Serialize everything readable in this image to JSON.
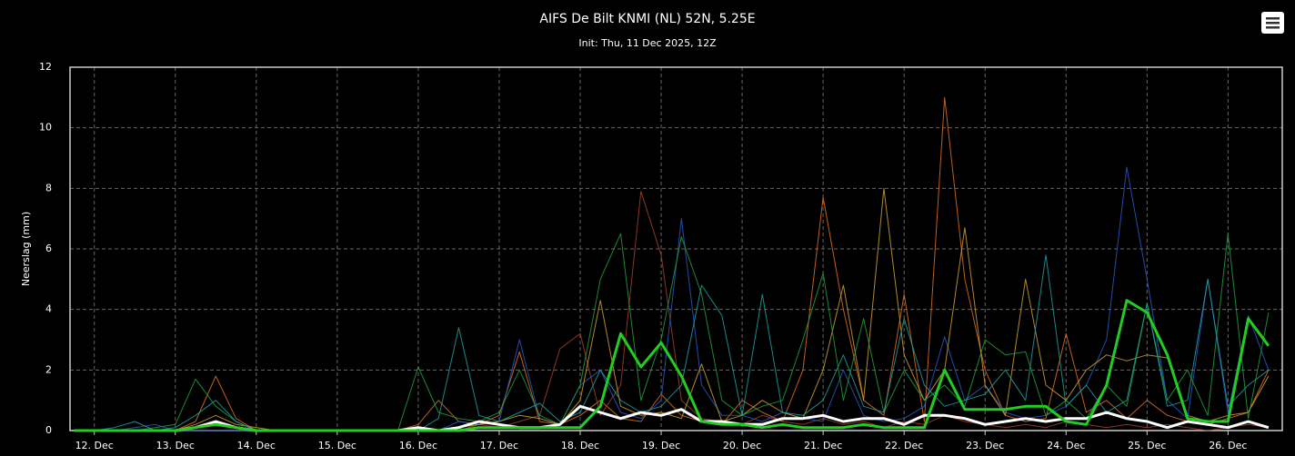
{
  "chart_data": {
    "type": "line",
    "title": "AIFS De Bilt KNMI (NL) 52N, 5.25E",
    "subtitle": "Init: Thu, 11 Dec 2025, 12Z",
    "y_label": "Neerslag (mm)",
    "xlim": [
      11.7,
      26.67
    ],
    "ylim": [
      0,
      12
    ],
    "yticks": [
      0,
      2,
      4,
      6,
      8,
      10,
      12
    ],
    "xticks": [
      {
        "value": 12,
        "label": "12. Dec"
      },
      {
        "value": 13,
        "label": "13. Dec"
      },
      {
        "value": 14,
        "label": "14. Dec"
      },
      {
        "value": 15,
        "label": "15. Dec"
      },
      {
        "value": 16,
        "label": "16. Dec"
      },
      {
        "value": 17,
        "label": "17. Dec"
      },
      {
        "value": 18,
        "label": "18. Dec"
      },
      {
        "value": 19,
        "label": "19. Dec"
      },
      {
        "value": 20,
        "label": "20. Dec"
      },
      {
        "value": 21,
        "label": "21. Dec"
      },
      {
        "value": 22,
        "label": "22. Dec"
      },
      {
        "value": 23,
        "label": "23. Dec"
      },
      {
        "value": 24,
        "label": "24. Dec"
      },
      {
        "value": 25,
        "label": "25. Dec"
      },
      {
        "value": 26,
        "label": "26. Dec"
      }
    ],
    "grid": true,
    "x": [
      11.75,
      12,
      12.25,
      12.5,
      12.75,
      13,
      13.25,
      13.5,
      13.75,
      14,
      14.25,
      14.5,
      14.75,
      15,
      15.25,
      15.5,
      15.75,
      16,
      16.25,
      16.5,
      16.75,
      17,
      17.25,
      17.5,
      17.75,
      18,
      18.25,
      18.5,
      18.75,
      19,
      19.25,
      19.5,
      19.75,
      20,
      20.25,
      20.5,
      20.75,
      21,
      21.25,
      21.5,
      21.75,
      22,
      22.25,
      22.5,
      22.75,
      23,
      23.25,
      23.5,
      23.75,
      24,
      24.25,
      24.5,
      24.75,
      25,
      25.25,
      25.5,
      25.75,
      26,
      26.25,
      26.5
    ],
    "series": [
      {
        "color": "#e07020",
        "width": 1,
        "values": [
          0,
          0,
          0,
          0,
          0,
          0,
          0.3,
          1.8,
          0.4,
          0,
          0,
          0,
          0,
          0,
          0,
          0,
          0,
          0.2,
          1.0,
          0.3,
          0.2,
          0.5,
          2.6,
          0.3,
          0.2,
          0.5,
          1.0,
          0.4,
          0.3,
          1.2,
          0.5,
          0.3,
          0.2,
          1.0,
          0.6,
          0.3,
          2.0,
          7.7,
          4.0,
          1.0,
          0.5,
          4.5,
          0.3,
          11.0,
          5.0,
          2.0,
          0.5,
          0.3,
          0.4,
          3.2,
          0.6,
          1.0,
          0.4,
          1.0,
          0.5,
          0.3,
          0.2,
          0.4,
          0.6,
          2.0
        ]
      },
      {
        "color": "#a0422a",
        "width": 1,
        "values": [
          0,
          0,
          0,
          0,
          0,
          0,
          0,
          0,
          0,
          0,
          0,
          0,
          0,
          0,
          0,
          0,
          0,
          0,
          0,
          0,
          0.2,
          0.1,
          0.3,
          0.5,
          2.7,
          3.2,
          0.5,
          1.5,
          7.9,
          5.8,
          1.0,
          0.4,
          0.3,
          0.2,
          0.5,
          0.3,
          0.2,
          0.4,
          0.2,
          0.3,
          0.1,
          0.3,
          0.2,
          0.5,
          0.3,
          0.2,
          0.1,
          0.2,
          0.1,
          0.3,
          0.2,
          0.1,
          0.2,
          0.1,
          0.2,
          0.1,
          0,
          0.1,
          0.2,
          0.1
        ]
      },
      {
        "color": "#2858c8",
        "width": 1,
        "values": [
          0,
          0,
          0,
          0.1,
          0.2,
          0,
          0,
          0,
          0,
          0,
          0,
          0,
          0,
          0,
          0,
          0,
          0,
          0,
          0,
          0.3,
          0.2,
          0.3,
          3.0,
          0.4,
          0.2,
          1.5,
          2.0,
          0.6,
          0.4,
          1.0,
          7.0,
          1.5,
          0.5,
          0.5,
          0.3,
          0.6,
          0.4,
          0.3,
          2.0,
          0.5,
          0.3,
          0.4,
          0.8,
          3.1,
          1.0,
          1.5,
          0.6,
          0.4,
          0.5,
          0.8,
          1.5,
          3.0,
          8.7,
          5.0,
          1.0,
          0.4,
          5.0,
          0.6,
          3.8,
          2.0
        ]
      },
      {
        "color": "#d0a030",
        "width": 1,
        "values": [
          0,
          0,
          0,
          0,
          0,
          0,
          0.2,
          0.5,
          0.2,
          0.1,
          0,
          0,
          0,
          0,
          0,
          0,
          0,
          0,
          0,
          0.1,
          0.2,
          0.3,
          0.5,
          0.4,
          0.2,
          1.0,
          4.3,
          0.8,
          0.5,
          0.6,
          0.4,
          2.2,
          0.3,
          0.5,
          1.0,
          0.6,
          0.4,
          2.0,
          4.8,
          1.0,
          8.0,
          2.5,
          1.0,
          2.0,
          6.7,
          1.5,
          0.5,
          5.0,
          1.5,
          1.0,
          2.0,
          2.5,
          2.3,
          2.5,
          2.4,
          0.5,
          0.3,
          0.5,
          0.6,
          1.8
        ]
      },
      {
        "color": "#20a040",
        "width": 1,
        "values": [
          0,
          0,
          0,
          0,
          0.1,
          0.2,
          1.7,
          0.8,
          0.3,
          0,
          0,
          0,
          0,
          0,
          0,
          0,
          0,
          2.1,
          0.6,
          0.4,
          0.3,
          0.6,
          2.0,
          0.5,
          0.2,
          1.5,
          5.0,
          6.5,
          1.0,
          3.0,
          6.4,
          4.5,
          1.0,
          0.5,
          0.8,
          1.0,
          3.0,
          5.2,
          1.0,
          3.7,
          0.6,
          2.0,
          1.0,
          1.5,
          0.8,
          3.0,
          2.5,
          2.6,
          0.5,
          1.0,
          0.4,
          1.5,
          0.8,
          4.2,
          1.0,
          2.0,
          0.5,
          6.5,
          0.4,
          3.9
        ]
      },
      {
        "color": "#20a0a0",
        "width": 1,
        "values": [
          0,
          0,
          0.1,
          0.3,
          0,
          0.1,
          0.5,
          1.0,
          0.3,
          0,
          0,
          0,
          0,
          0,
          0,
          0,
          0,
          0,
          0.4,
          3.4,
          0.5,
          0.3,
          0.6,
          0.9,
          0.3,
          0.6,
          2.0,
          1.0,
          0.6,
          0.8,
          1.5,
          4.8,
          3.8,
          0.5,
          4.5,
          0.6,
          0.5,
          1.0,
          2.5,
          0.8,
          0.6,
          3.7,
          1.5,
          0.8,
          1.0,
          1.2,
          2.0,
          1.0,
          5.8,
          0.8,
          1.5,
          0.6,
          1.0,
          4.2,
          0.8,
          1.0,
          5.0,
          0.8,
          1.5,
          2.0
        ]
      },
      {
        "color": "#ffffff",
        "width": 3,
        "values": [
          0,
          0,
          0,
          0,
          0,
          0,
          0.1,
          0.3,
          0.1,
          0,
          0,
          0,
          0,
          0,
          0,
          0,
          0,
          0.1,
          0,
          0.1,
          0.3,
          0.2,
          0.1,
          0.1,
          0.2,
          0.8,
          0.6,
          0.4,
          0.6,
          0.5,
          0.7,
          0.3,
          0.3,
          0.2,
          0.2,
          0.4,
          0.4,
          0.5,
          0.3,
          0.4,
          0.4,
          0.2,
          0.5,
          0.5,
          0.4,
          0.2,
          0.3,
          0.4,
          0.3,
          0.4,
          0.4,
          0.6,
          0.4,
          0.3,
          0.1,
          0.3,
          0.2,
          0.1,
          0.3,
          0.1
        ]
      },
      {
        "color": "#22cc22",
        "width": 3,
        "values": [
          0,
          0,
          0,
          0,
          0,
          0,
          0.1,
          0.2,
          0.1,
          0,
          0,
          0,
          0,
          0,
          0,
          0,
          0,
          0,
          0,
          0,
          0.1,
          0.1,
          0.1,
          0.1,
          0.1,
          0.1,
          0.8,
          3.2,
          2.1,
          2.9,
          1.8,
          0.3,
          0.2,
          0.2,
          0.1,
          0.2,
          0.1,
          0.1,
          0.1,
          0.2,
          0.1,
          0.1,
          0.1,
          2.0,
          0.7,
          0.7,
          0.7,
          0.8,
          0.8,
          0.3,
          0.2,
          1.5,
          4.3,
          3.9,
          2.5,
          0.4,
          0.3,
          0.3,
          3.7,
          2.8
        ]
      }
    ]
  }
}
